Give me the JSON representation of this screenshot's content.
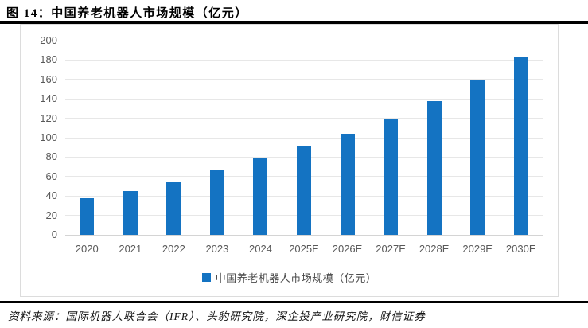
{
  "header": {
    "title": "图 14：中国养老机器人市场规模（亿元）"
  },
  "chart_data": {
    "type": "bar",
    "title": "中国养老机器人市场规模（亿元）",
    "legend": "中国养老机器人市场规模（亿元）",
    "legend_position": "bottom",
    "categories": [
      "2020",
      "2021",
      "2022",
      "2023",
      "2024",
      "2025E",
      "2026E",
      "2027E",
      "2028E",
      "2029E",
      "2030E"
    ],
    "values": [
      38,
      45,
      55,
      66,
      79,
      91,
      104,
      120,
      138,
      159,
      183
    ],
    "xlabel": "",
    "ylabel": "",
    "ylim": [
      0,
      200
    ],
    "ytick_step": 20,
    "grid": true,
    "colors": {
      "bar": "#1473c2",
      "gridline": "#e7e7e7",
      "axis_line": "#d4d4d4",
      "tick_text": "#595959",
      "frame_border": "#dcdcdc",
      "rule": "#000000"
    }
  },
  "footer": {
    "source": "资料来源：国际机器人联合会（IFR）、头豹研究院，深企投产业研究院，财信证券"
  }
}
